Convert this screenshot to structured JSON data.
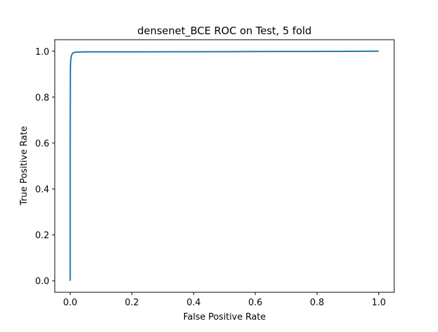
{
  "chart_data": {
    "type": "line",
    "title": "densenet_BCE ROC on Test, 5 fold",
    "xlabel": "False Positive Rate",
    "ylabel": "True Positive Rate",
    "xlim": [
      -0.05,
      1.05
    ],
    "ylim": [
      -0.05,
      1.05
    ],
    "xticks": [
      0.0,
      0.2,
      0.4,
      0.6,
      0.8,
      1.0
    ],
    "xtick_labels": [
      "0.0",
      "0.2",
      "0.4",
      "0.6",
      "0.8",
      "1.0"
    ],
    "yticks": [
      0.0,
      0.2,
      0.4,
      0.6,
      0.8,
      1.0
    ],
    "ytick_labels": [
      "0.0",
      "0.2",
      "0.4",
      "0.6",
      "0.8",
      "1.0"
    ],
    "grid": false,
    "legend": "none",
    "series": [
      {
        "color": "#1f77b4",
        "x": [
          0.0,
          0.0,
          0.0005,
          0.001,
          0.002,
          0.004,
          0.007,
          0.012,
          0.02,
          0.05,
          0.2,
          0.5,
          0.8,
          1.0
        ],
        "y": [
          0.0,
          0.6,
          0.9,
          0.94,
          0.965,
          0.98,
          0.99,
          0.994,
          0.996,
          0.997,
          0.997,
          0.998,
          0.999,
          1.0
        ]
      }
    ]
  }
}
